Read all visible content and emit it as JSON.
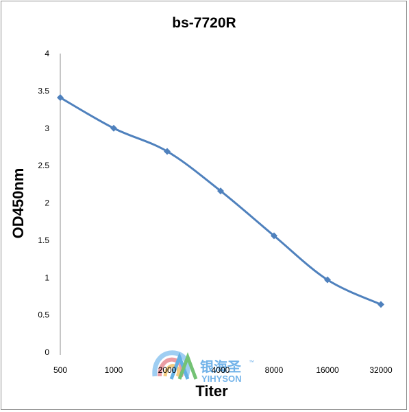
{
  "chart_data": {
    "type": "line",
    "title": "bs-7720R",
    "xlabel": "Titer",
    "ylabel": "OD450nm",
    "categories": [
      "500",
      "1000",
      "2000",
      "4000",
      "8000",
      "16000",
      "32000"
    ],
    "series": [
      {
        "values": [
          3.41,
          3.0,
          2.69,
          2.16,
          1.56,
          0.97,
          0.64
        ]
      }
    ],
    "ylim": [
      0,
      4
    ],
    "yticks": [
      "0",
      "0.5",
      "1",
      "1.5",
      "2",
      "2.5",
      "3",
      "3.5",
      "4"
    ],
    "grid": false,
    "legend": "none",
    "colors": {
      "line": "#4f81bd",
      "axis": "#8c8c8c"
    }
  },
  "watermark": {
    "cn": "银海圣",
    "en": "YIHYSON",
    "tm": "™"
  }
}
